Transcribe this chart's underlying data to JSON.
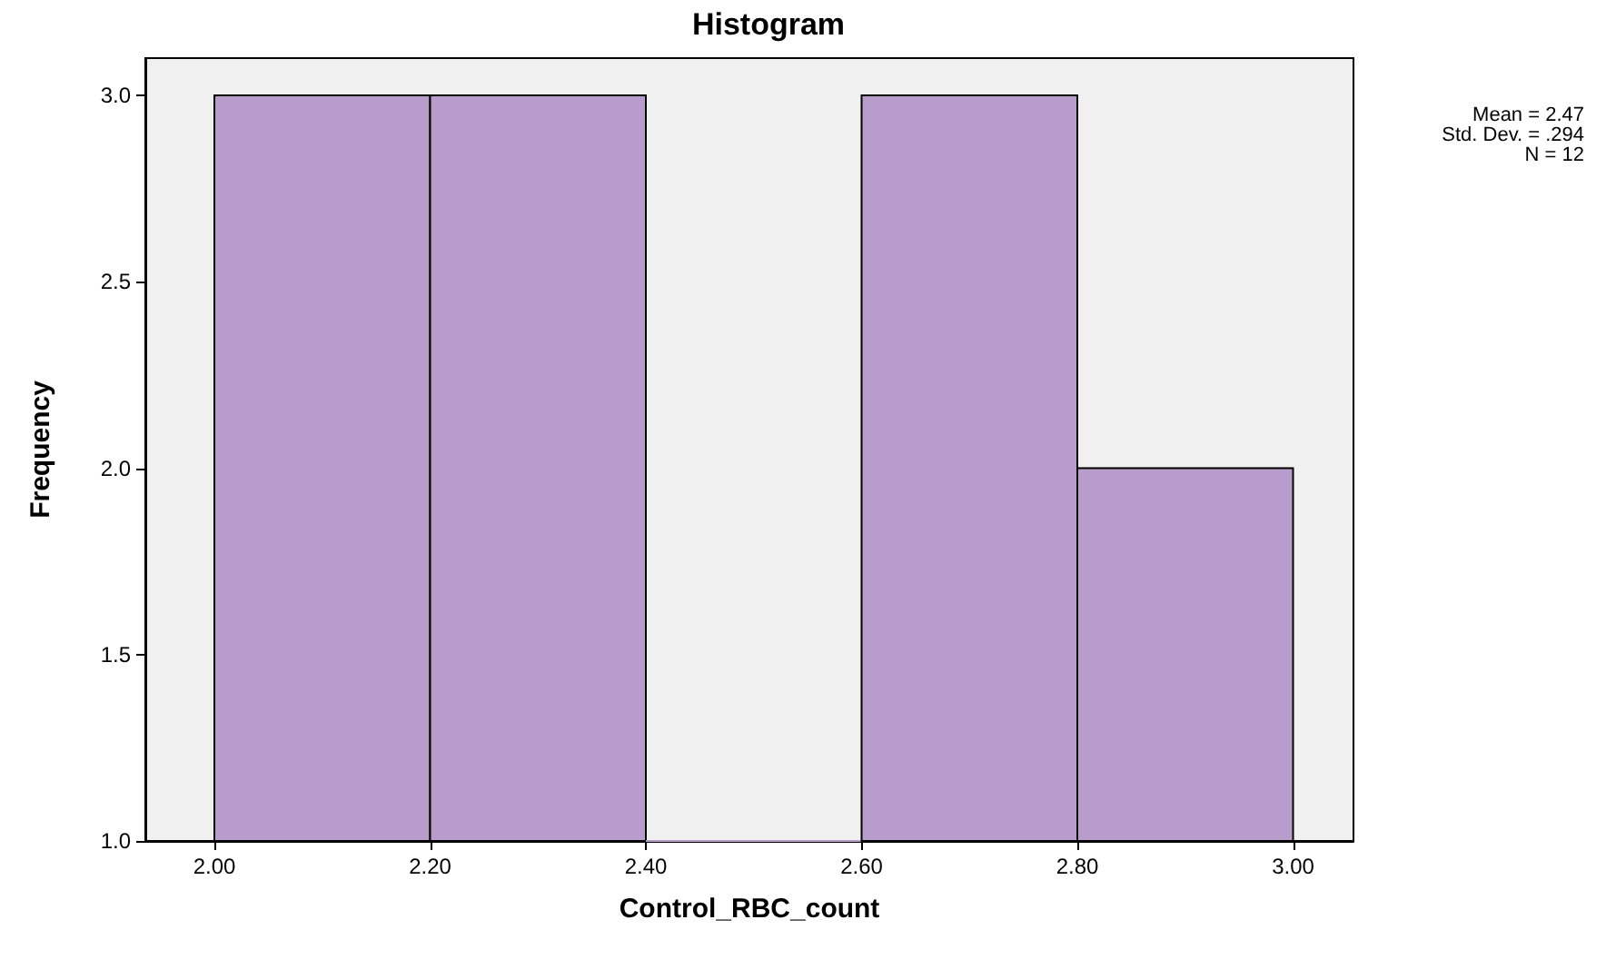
{
  "chart_data": {
    "type": "histogram",
    "title": "Histogram",
    "xlabel": "Control_RBC_count",
    "ylabel": "Frequency",
    "bins": [
      2.0,
      2.2,
      2.4,
      2.6,
      2.8,
      3.0
    ],
    "values": [
      3,
      3,
      1,
      3,
      2
    ],
    "color": "#b89ccb",
    "xlim": [
      1.936,
      3.056
    ],
    "ylim": [
      1.0,
      3.1
    ],
    "xticks": [
      {
        "value": 2.0,
        "label": "2.00"
      },
      {
        "value": 2.2,
        "label": "2.20"
      },
      {
        "value": 2.4,
        "label": "2.40"
      },
      {
        "value": 2.6,
        "label": "2.60"
      },
      {
        "value": 2.8,
        "label": "2.80"
      },
      {
        "value": 3.0,
        "label": "3.00"
      }
    ],
    "yticks": [
      {
        "value": 1.0,
        "label": "1.0"
      },
      {
        "value": 1.5,
        "label": "1.5"
      },
      {
        "value": 2.0,
        "label": "2.0"
      },
      {
        "value": 2.5,
        "label": "2.5"
      },
      {
        "value": 3.0,
        "label": "3.0"
      }
    ],
    "annotations": [
      "Mean = 2.47",
      "Std. Dev. = .294",
      "N = 12"
    ],
    "grid": false
  }
}
